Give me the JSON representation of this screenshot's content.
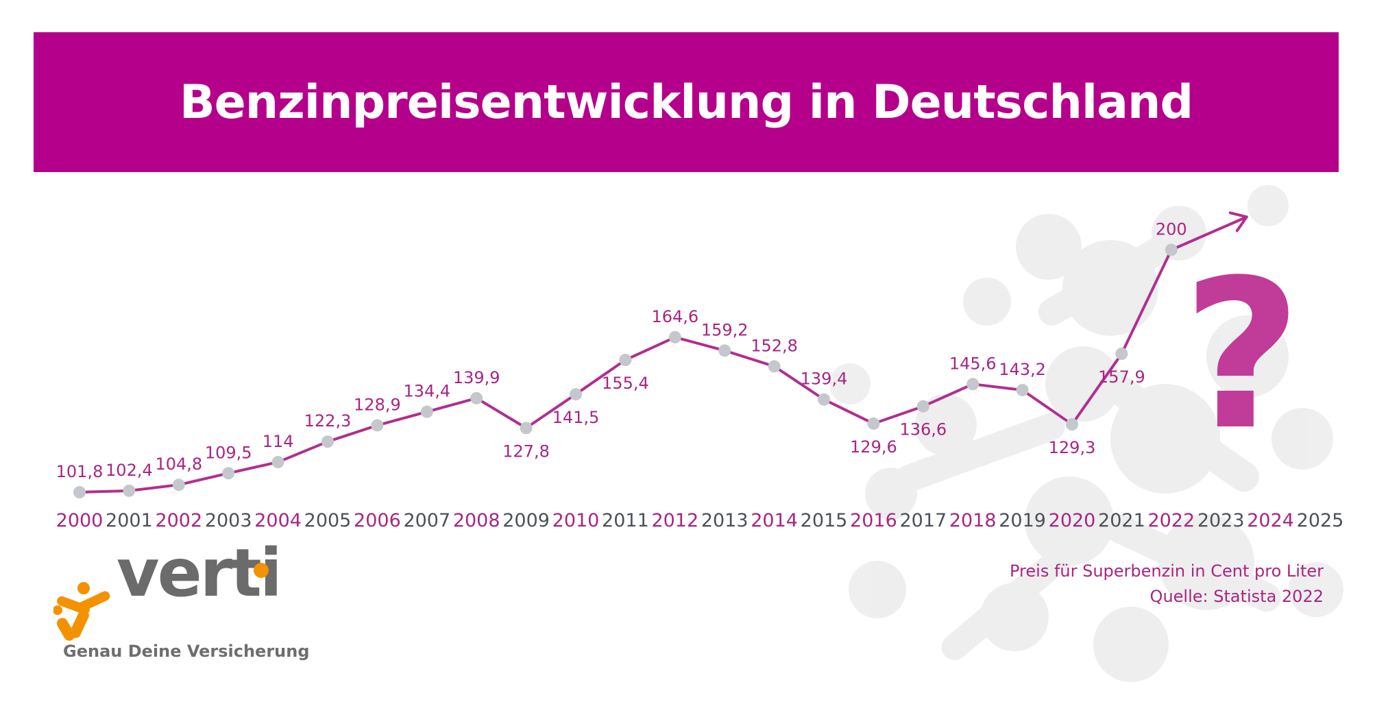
{
  "colors": {
    "brand": "#b5008b",
    "line": "#b02f8e",
    "marker": "#c4c7cc",
    "label": "#a82582",
    "year_dark": "#4c5158",
    "question": "#c03c98",
    "logo_orange": "#f39200",
    "logo_grey": "#6b6b6b",
    "background_pattern": "#ececec"
  },
  "header": {
    "title": "Benzinpreisentwicklung in Deutschland"
  },
  "chart_data": {
    "type": "line",
    "title": "Benzinpreisentwicklung in Deutschland",
    "unit_note": "Preis für Superbenzin in Cent pro Liter",
    "source": "Quelle: Statista 2022",
    "x_labels": [
      "2000",
      "2001",
      "2002",
      "2003",
      "2004",
      "2005",
      "2006",
      "2007",
      "2008",
      "2009",
      "2010",
      "2011",
      "2012",
      "2013",
      "2014",
      "2015",
      "2016",
      "2017",
      "2018",
      "2019",
      "2020",
      "2021",
      "2022",
      "2023",
      "2024",
      "2025"
    ],
    "x": [
      2000,
      2001,
      2002,
      2003,
      2004,
      2005,
      2006,
      2007,
      2008,
      2009,
      2010,
      2011,
      2012,
      2013,
      2014,
      2015,
      2016,
      2017,
      2018,
      2019,
      2020,
      2021,
      2022
    ],
    "values": [
      101.8,
      102.4,
      104.8,
      109.5,
      114,
      122.3,
      128.9,
      134.4,
      139.9,
      127.8,
      141.5,
      155.4,
      164.6,
      159.2,
      152.8,
      139.4,
      129.6,
      136.6,
      145.6,
      143.2,
      129.3,
      157.9,
      200
    ],
    "value_labels": [
      "101,8",
      "102,4",
      "104,8",
      "109,5",
      "114",
      "122,3",
      "128,9",
      "134,4",
      "139,9",
      "127,8",
      "141,5",
      "155,4",
      "164,6",
      "159,2",
      "152,8",
      "139,4",
      "129,6",
      "136,6",
      "145,6",
      "143,2",
      "129,3",
      "157,9",
      "200"
    ],
    "label_positions": [
      "above",
      "above",
      "above",
      "above",
      "above",
      "above",
      "above",
      "above",
      "above",
      "below",
      "below",
      "below",
      "above",
      "above",
      "above",
      "above",
      "below",
      "below",
      "above",
      "above",
      "below",
      "below",
      "above"
    ],
    "trend_arrow": "up-right",
    "question_mark": "?",
    "grid": false,
    "legend": "none"
  },
  "footer": {
    "source_line1": "Preis für Superbenzin in Cent pro Liter",
    "source_line2": "Quelle: Statista 2022"
  },
  "logo": {
    "wordmark": "verti",
    "tagline": "Genau Deine Versicherung",
    "icon": "orange-figure-icon"
  }
}
